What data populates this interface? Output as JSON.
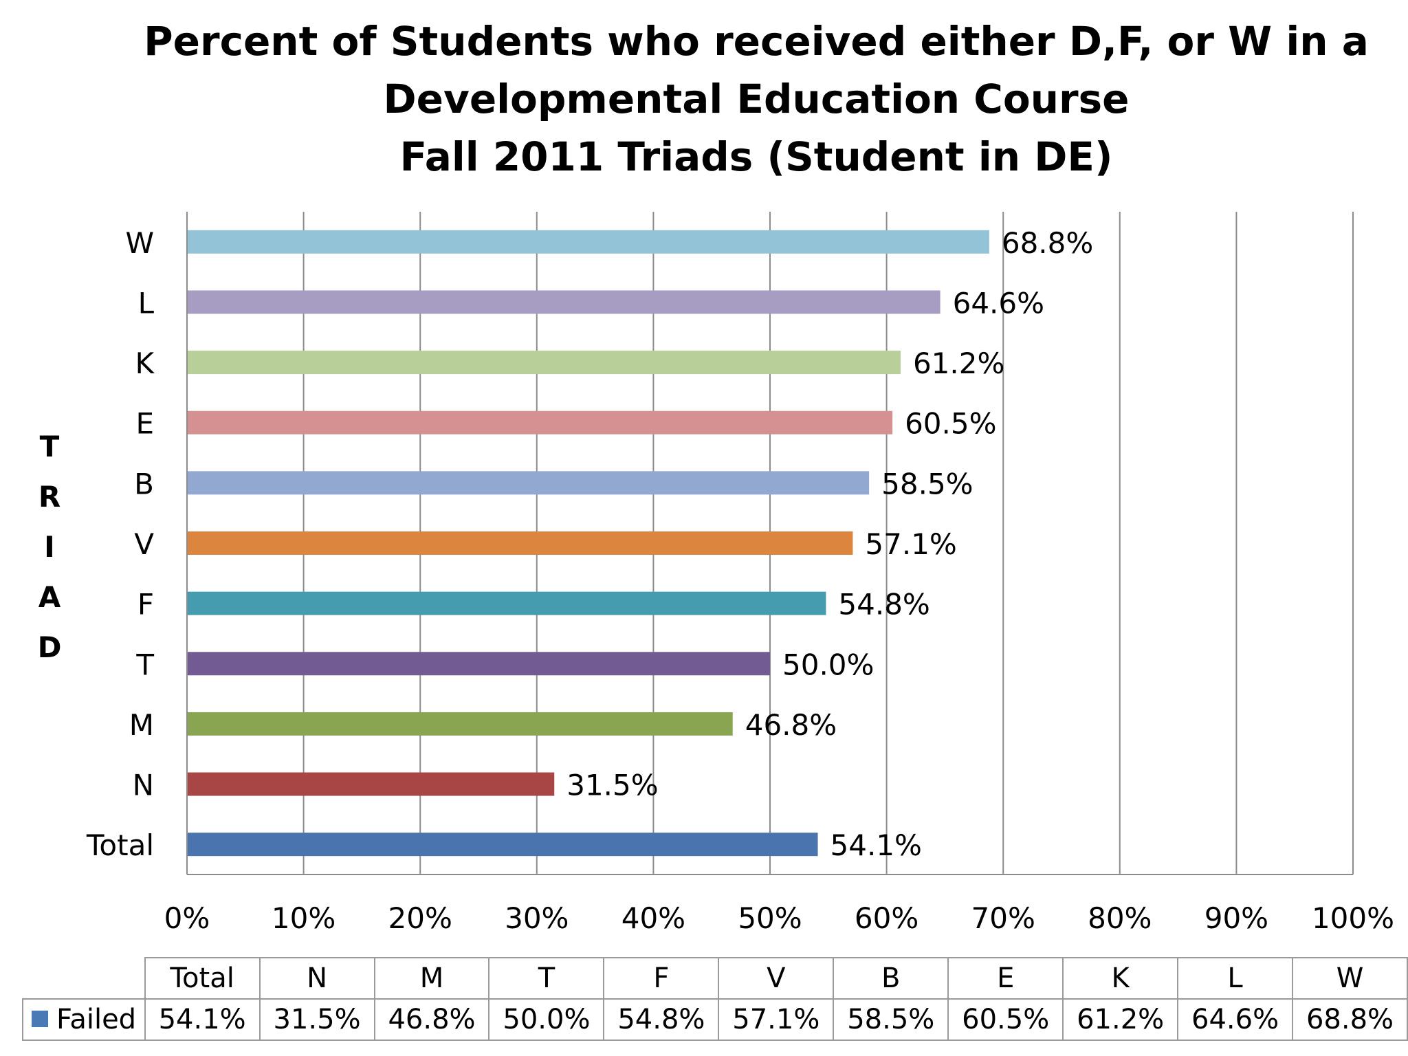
{
  "chart_data": {
    "type": "bar",
    "orientation": "horizontal",
    "title_lines": [
      "Percent of Students who received either D,F, or W in a",
      "Developmental Education Course",
      "Fall 2011 Triads (Student in DE)"
    ],
    "ylabel_letters": [
      "T",
      "R",
      "I",
      "A",
      "D"
    ],
    "categories": [
      "Total",
      "N",
      "M",
      "T",
      "F",
      "V",
      "B",
      "E",
      "K",
      "L",
      "W"
    ],
    "series": [
      {
        "name": "Failed",
        "values": [
          54.1,
          31.5,
          46.8,
          50.0,
          54.8,
          57.1,
          58.5,
          60.5,
          61.2,
          64.6,
          68.8
        ],
        "labels": [
          "54.1%",
          "31.5%",
          "46.8%",
          "50.0%",
          "54.8%",
          "57.1%",
          "58.5%",
          "60.5%",
          "61.2%",
          "64.6%",
          "68.8%"
        ]
      }
    ],
    "bar_colors": [
      "#4a74ad",
      "#a84646",
      "#8aa552",
      "#725b92",
      "#459cae",
      "#db853f",
      "#93a8d1",
      "#d59192",
      "#b8cf9a",
      "#a79cc1",
      "#92c3d6"
    ],
    "legend_color": "#4a7ab5",
    "xlim": [
      0,
      100
    ],
    "xticks": [
      0,
      10,
      20,
      30,
      40,
      50,
      60,
      70,
      80,
      90,
      100
    ],
    "xtick_labels": [
      "0%",
      "10%",
      "20%",
      "30%",
      "40%",
      "50%",
      "60%",
      "70%",
      "80%",
      "90%",
      "100%"
    ],
    "grid": true,
    "data_table": true
  }
}
